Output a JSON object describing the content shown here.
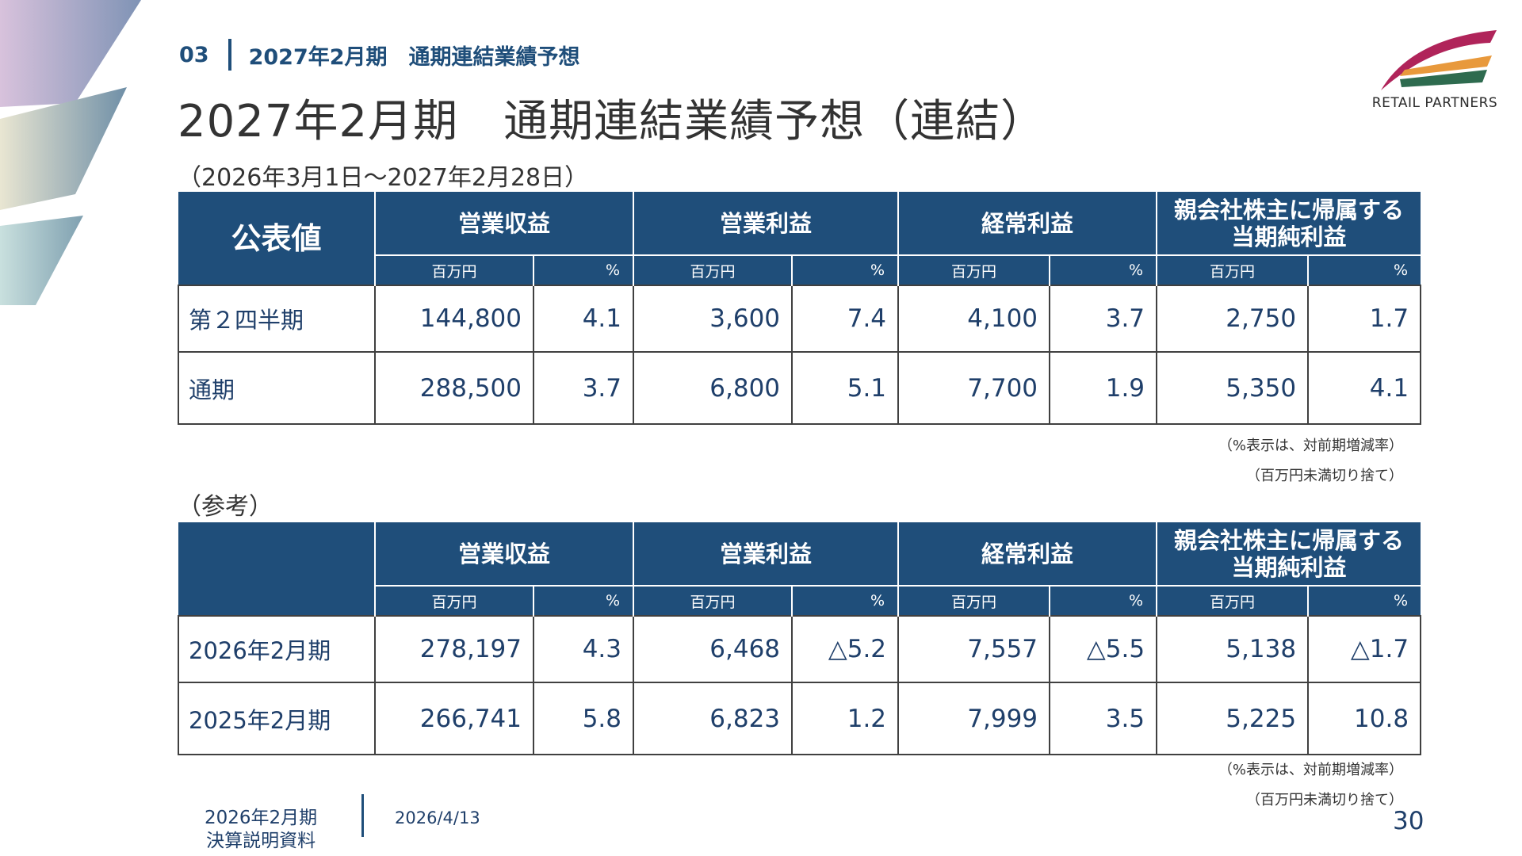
{
  "section": {
    "number": "03",
    "title": "2027年2月期　通期連結業績予想"
  },
  "title": "2027年2月期　通期連結業績予想（連結）",
  "period": "（2026年3月1日～2027年2月28日）",
  "logo": {
    "text": "RETAIL PARTNERS"
  },
  "columns": {
    "revenue": "営業収益",
    "op_profit": "営業利益",
    "ord_profit": "経常利益",
    "net_line1": "親会社株主に帰属する",
    "net_line2": "当期純利益",
    "unit_mil": "百万円",
    "unit_pct": "%"
  },
  "forecast": {
    "corner_label": "公表値",
    "rows": [
      {
        "label": "第２四半期",
        "revenue": "144,800",
        "revenue_pct": "4.1",
        "op": "3,600",
        "op_pct": "7.4",
        "ord": "4,100",
        "ord_pct": "3.7",
        "net": "2,750",
        "net_pct": "1.7"
      },
      {
        "label": "通期",
        "revenue": "288,500",
        "revenue_pct": "3.7",
        "op": "6,800",
        "op_pct": "5.1",
        "ord": "7,700",
        "ord_pct": "1.9",
        "net": "5,350",
        "net_pct": "4.1"
      }
    ]
  },
  "reference": {
    "label": "（参考）",
    "rows": [
      {
        "label": "2026年2月期",
        "revenue": "278,197",
        "revenue_pct": "4.3",
        "op": "6,468",
        "op_pct": "△5.2",
        "ord": "7,557",
        "ord_pct": "△5.5",
        "net": "5,138",
        "net_pct": "△1.7"
      },
      {
        "label": "2025年2月期",
        "revenue": "266,741",
        "revenue_pct": "5.8",
        "op": "6,823",
        "op_pct": "1.2",
        "ord": "7,999",
        "ord_pct": "3.5",
        "net": "5,225",
        "net_pct": "10.8"
      }
    ]
  },
  "notes": {
    "pct_note": "（%表示は、対前期増減率）",
    "rounding_note": "（百万円未満切り捨て）"
  },
  "footer": {
    "doc_line1": "2026年2月期",
    "doc_line2": "決算説明資料",
    "date": "2026/4/13",
    "page": "30"
  },
  "colors": {
    "header_bg": "#1f4e7a",
    "text_blue": "#1f3f6a",
    "logo_magenta": "#b0245a",
    "logo_orange": "#e8993c",
    "logo_green": "#2e6b4f"
  }
}
